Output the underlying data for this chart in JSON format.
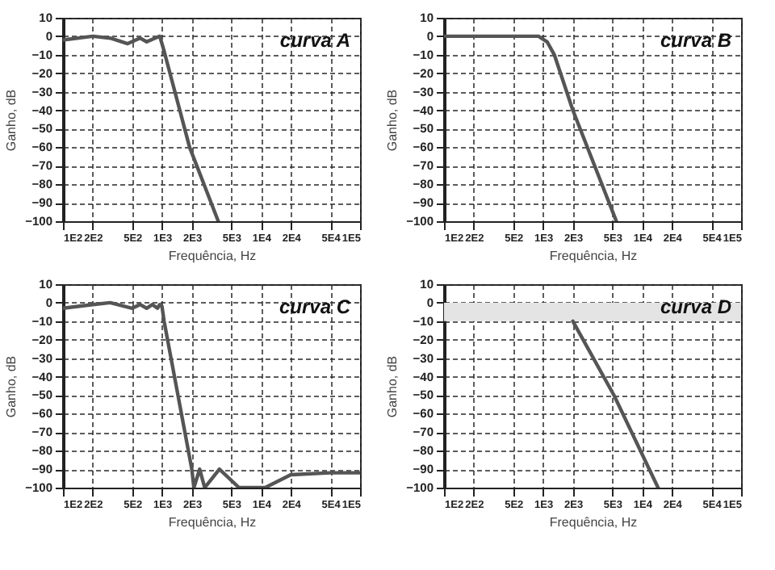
{
  "chart_data": [
    {
      "type": "line",
      "xlabel": "Frequência, Hz",
      "ylabel": "Ganho, dB",
      "log": "x",
      "grid": true,
      "annotations": [
        "curva A"
      ],
      "xlim": [
        100,
        100000
      ],
      "ylim": [
        -100,
        10
      ],
      "xticks": [
        {
          "value": 100,
          "label": "1E2"
        },
        {
          "value": 200,
          "label": "2E2"
        },
        {
          "value": 500,
          "label": "5E2"
        },
        {
          "value": 1000,
          "label": "1E3"
        },
        {
          "value": 2000,
          "label": "2E3"
        },
        {
          "value": 5000,
          "label": "5E3"
        },
        {
          "value": 10000,
          "label": "1E4"
        },
        {
          "value": 20000,
          "label": "2E4"
        },
        {
          "value": 50000,
          "label": "5E4"
        },
        {
          "value": 100000,
          "label": "1E5"
        }
      ],
      "yticks": [
        -100,
        -90,
        -80,
        -70,
        -60,
        -50,
        -40,
        -30,
        -20,
        -10,
        0,
        10
      ],
      "series": [
        {
          "color": "#555555",
          "x": [
            100,
            200,
            300,
            450,
            600,
            700,
            850,
            950,
            1050,
            1900,
            3700
          ],
          "values": [
            -2,
            0,
            -1,
            -4,
            -1,
            -3,
            -1,
            0,
            -8,
            -60,
            -100
          ]
        }
      ]
    },
    {
      "type": "line",
      "xlabel": "Frequência, Hz",
      "ylabel": "Ganho, dB",
      "log": "x",
      "grid": true,
      "annotations": [
        "curva B"
      ],
      "xlim": [
        100,
        100000
      ],
      "ylim": [
        -100,
        10
      ],
      "xticks": [
        {
          "value": 100,
          "label": "1E2"
        },
        {
          "value": 200,
          "label": "2E2"
        },
        {
          "value": 500,
          "label": "5E2"
        },
        {
          "value": 1000,
          "label": "1E3"
        },
        {
          "value": 2000,
          "label": "2E3"
        },
        {
          "value": 5000,
          "label": "5E3"
        },
        {
          "value": 10000,
          "label": "1E4"
        },
        {
          "value": 20000,
          "label": "2E4"
        },
        {
          "value": 50000,
          "label": "5E4"
        },
        {
          "value": 100000,
          "label": "1E5"
        }
      ],
      "yticks": [
        -100,
        -90,
        -80,
        -70,
        -60,
        -50,
        -40,
        -30,
        -20,
        -10,
        0,
        10
      ],
      "series": [
        {
          "color": "#555555",
          "x": [
            100,
            900,
            1100,
            1300,
            2000,
            5500
          ],
          "values": [
            0,
            0,
            -3,
            -10,
            -40,
            -100
          ]
        }
      ]
    },
    {
      "type": "line",
      "xlabel": "Frequência, Hz",
      "ylabel": "Ganho, dB",
      "log": "x",
      "grid": true,
      "annotations": [
        "curva C"
      ],
      "xlim": [
        100,
        100000
      ],
      "ylim": [
        -100,
        10
      ],
      "xticks": [
        {
          "value": 100,
          "label": "1E2"
        },
        {
          "value": 200,
          "label": "2E2"
        },
        {
          "value": 500,
          "label": "5E2"
        },
        {
          "value": 1000,
          "label": "1E3"
        },
        {
          "value": 2000,
          "label": "2E3"
        },
        {
          "value": 5000,
          "label": "5E3"
        },
        {
          "value": 10000,
          "label": "1E4"
        },
        {
          "value": 20000,
          "label": "2E4"
        },
        {
          "value": 50000,
          "label": "5E4"
        },
        {
          "value": 100000,
          "label": "1E5"
        }
      ],
      "yticks": [
        -100,
        -90,
        -80,
        -70,
        -60,
        -50,
        -40,
        -30,
        -20,
        -10,
        0,
        10
      ],
      "series": [
        {
          "color": "#555555",
          "x": [
            100,
            200,
            300,
            500,
            600,
            700,
            800,
            900,
            950,
            1000,
            1050,
            2000,
            2100,
            2400,
            2700,
            3800,
            6000,
            11000,
            20000,
            50000,
            100000
          ],
          "values": [
            -3,
            -1,
            0,
            -3,
            -1,
            -3,
            -1,
            -3,
            -1,
            -2,
            -10,
            -90,
            -100,
            -90,
            -100,
            -90,
            -100,
            -100,
            -93,
            -92,
            -92
          ]
        }
      ]
    },
    {
      "type": "line",
      "xlabel": "Frequência, Hz",
      "ylabel": "Ganho, dB",
      "log": "x",
      "grid": true,
      "annotations": [
        "curva D"
      ],
      "xlim": [
        100,
        100000
      ],
      "ylim": [
        -100,
        10
      ],
      "xticks": [
        {
          "value": 100,
          "label": "1E2"
        },
        {
          "value": 200,
          "label": "2E2"
        },
        {
          "value": 500,
          "label": "5E2"
        },
        {
          "value": 1000,
          "label": "1E3"
        },
        {
          "value": 2000,
          "label": "2E3"
        },
        {
          "value": 5000,
          "label": "5E3"
        },
        {
          "value": 10000,
          "label": "1E4"
        },
        {
          "value": 20000,
          "label": "2E4"
        },
        {
          "value": 50000,
          "label": "5E4"
        },
        {
          "value": 100000,
          "label": "1E5"
        }
      ],
      "yticks": [
        -100,
        -90,
        -80,
        -70,
        -60,
        -50,
        -40,
        -30,
        -20,
        -10,
        0,
        10
      ],
      "bands": [
        {
          "axis": "y",
          "from": -10,
          "to": 0,
          "color": "#e4e4e4"
        }
      ],
      "series": [
        {
          "color": "#555555",
          "x": [
            2000,
            5200,
            14500
          ],
          "values": [
            -10,
            -50,
            -100
          ]
        }
      ]
    }
  ]
}
